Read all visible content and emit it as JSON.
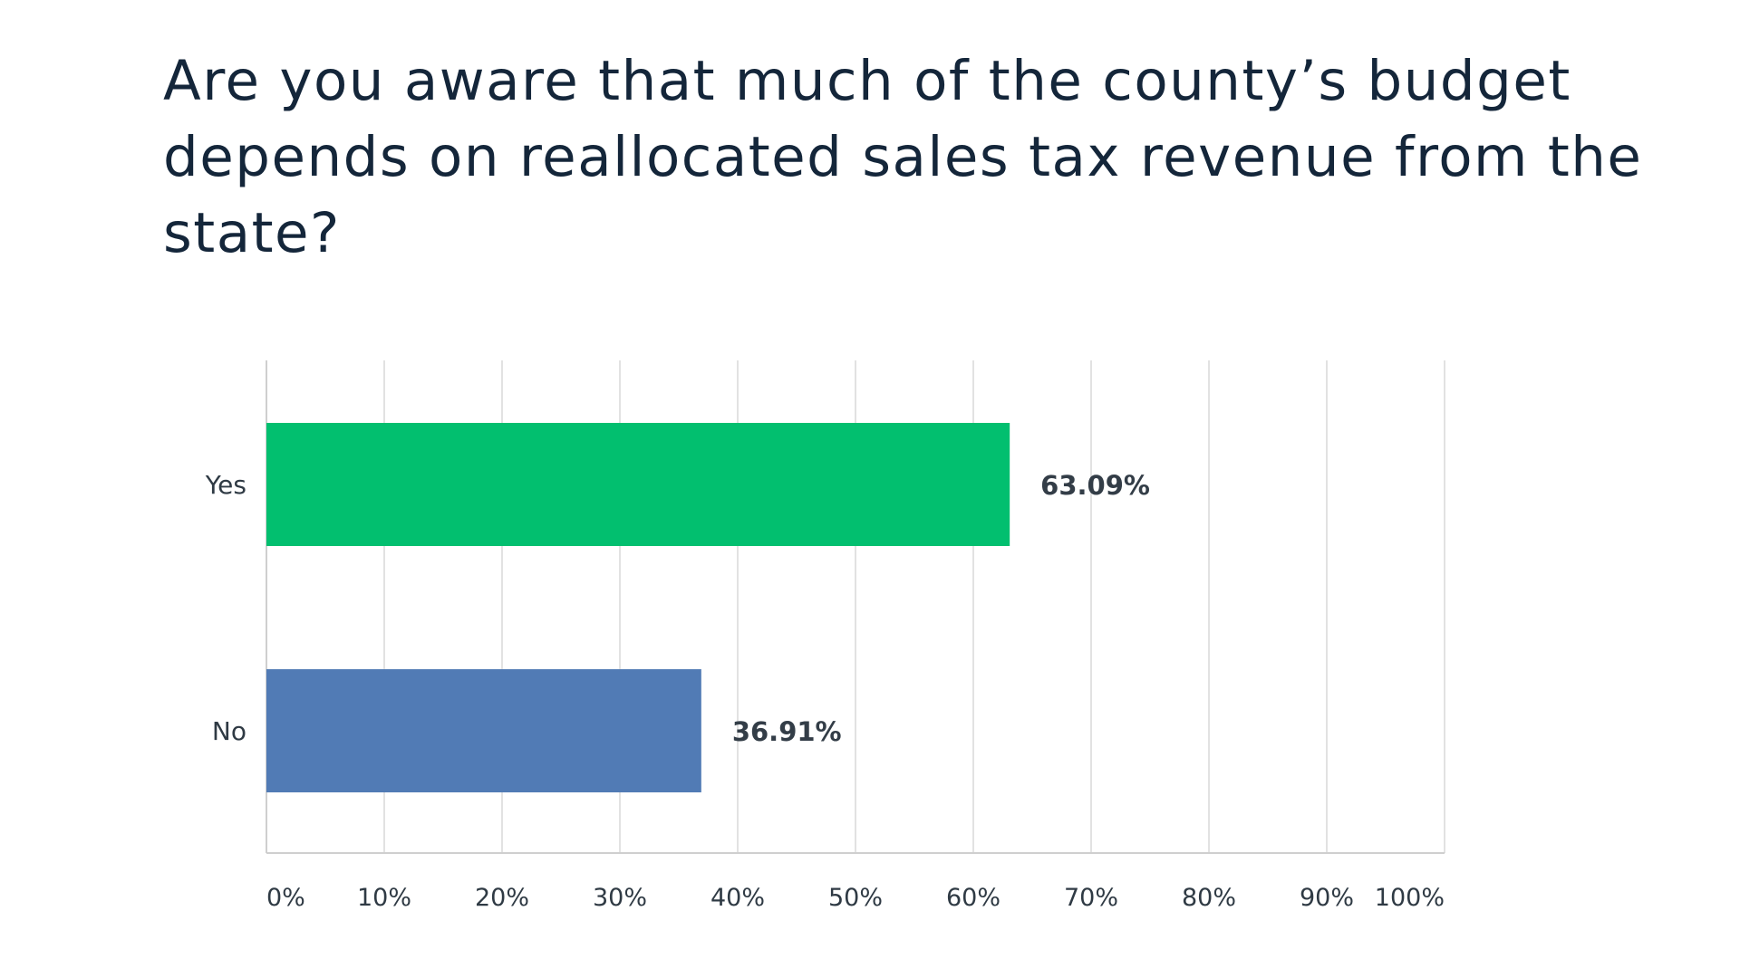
{
  "chart_data": {
    "type": "bar",
    "orientation": "horizontal",
    "title": "Are you aware that much of the county’s budget depends on reallocated sales tax revenue from the state?",
    "categories": [
      "Yes",
      "No"
    ],
    "values": [
      63.09,
      36.91
    ],
    "value_labels": [
      "63.09%",
      "36.91%"
    ],
    "colors": [
      "#02bf6f",
      "#517bb5"
    ],
    "xlim": [
      0,
      100
    ],
    "xticks": [
      0,
      10,
      20,
      30,
      40,
      50,
      60,
      70,
      80,
      90,
      100
    ],
    "xtick_labels": [
      "0%",
      "10%",
      "20%",
      "30%",
      "40%",
      "50%",
      "60%",
      "70%",
      "80%",
      "90%",
      "100%"
    ],
    "grid": "vertical",
    "legend": "none"
  }
}
